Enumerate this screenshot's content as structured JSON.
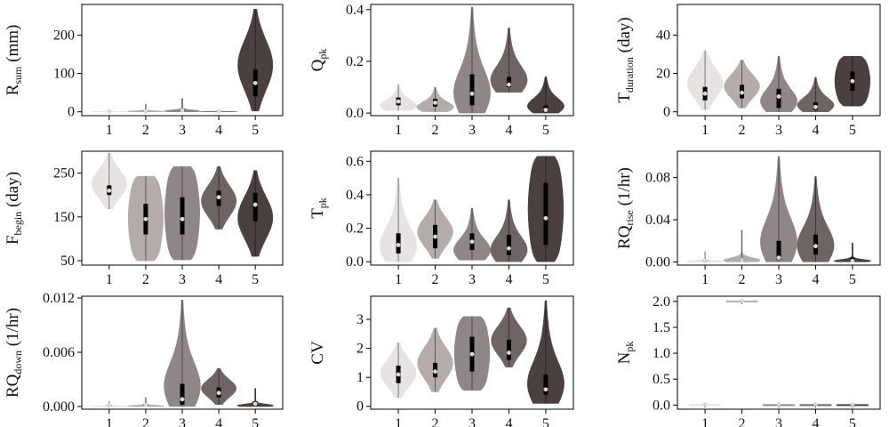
{
  "figure": {
    "colors": [
      "#e6e3e2",
      "#b3acab",
      "#8f8787",
      "#6d6463",
      "#4a403f"
    ],
    "median_dot_color": "#d9d9d9",
    "box_color": "#000000",
    "x_categories": [
      "1",
      "2",
      "3",
      "4",
      "5"
    ]
  },
  "chart_data": [
    {
      "id": "rsum",
      "type": "violin",
      "ylabel": {
        "main": "R",
        "sub": "sum",
        "unit": " (mm)"
      },
      "ylim": [
        -10,
        280
      ],
      "yticks": [
        0,
        100,
        200
      ],
      "ytick_labels": [
        "0",
        "100",
        "200"
      ],
      "categories": [
        "1",
        "2",
        "3",
        "4",
        "5"
      ],
      "series": [
        {
          "category": "1",
          "min": 0,
          "max": 4,
          "q1": 0.5,
          "q3": 2,
          "median": 1,
          "shape": "spike"
        },
        {
          "category": "2",
          "min": 0,
          "max": 20,
          "q1": 0.5,
          "q3": 2,
          "median": 1,
          "shape": "spike"
        },
        {
          "category": "3",
          "min": 0,
          "max": 35,
          "q1": 2,
          "q3": 8,
          "median": 4,
          "shape": "spike"
        },
        {
          "category": "4",
          "min": 0,
          "max": 6,
          "q1": 1,
          "q3": 3,
          "median": 2,
          "shape": "spike"
        },
        {
          "category": "5",
          "min": 2,
          "max": 268,
          "q1": 40,
          "q3": 110,
          "median": 75,
          "shape": "mid"
        }
      ]
    },
    {
      "id": "qpk",
      "type": "violin",
      "ylabel": {
        "main": "Q",
        "sub": "pk",
        "unit": ""
      },
      "ylim": [
        -0.01,
        0.42
      ],
      "yticks": [
        0,
        0.2,
        0.4
      ],
      "ytick_labels": [
        "0.0",
        "0.2",
        "0.4"
      ],
      "categories": [
        "1",
        "2",
        "3",
        "4",
        "5"
      ],
      "series": [
        {
          "category": "1",
          "min": 0.01,
          "max": 0.11,
          "q1": 0.03,
          "q3": 0.06,
          "median": 0.045,
          "shape": "low"
        },
        {
          "category": "2",
          "min": 0.005,
          "max": 0.1,
          "q1": 0.025,
          "q3": 0.055,
          "median": 0.04,
          "shape": "low"
        },
        {
          "category": "3",
          "min": 0.0,
          "max": 0.41,
          "q1": 0.03,
          "q3": 0.15,
          "median": 0.075,
          "shape": "low"
        },
        {
          "category": "4",
          "min": 0.08,
          "max": 0.33,
          "q1": 0.1,
          "q3": 0.14,
          "median": 0.11,
          "shape": "low"
        },
        {
          "category": "5",
          "min": 0.0,
          "max": 0.14,
          "q1": 0.005,
          "q3": 0.03,
          "median": 0.012,
          "shape": "low"
        }
      ]
    },
    {
      "id": "tduration",
      "type": "violin",
      "ylabel": {
        "main": "T",
        "sub": "duration",
        "unit": " (day)"
      },
      "ylim": [
        -2,
        56
      ],
      "yticks": [
        0,
        20,
        40
      ],
      "ytick_labels": [
        "0",
        "20",
        "40"
      ],
      "categories": [
        "1",
        "2",
        "3",
        "4",
        "5"
      ],
      "series": [
        {
          "category": "1",
          "min": 1,
          "max": 32,
          "q1": 6,
          "q3": 13,
          "median": 9.5,
          "shape": "mid"
        },
        {
          "category": "2",
          "min": 2,
          "max": 27,
          "q1": 7,
          "q3": 14,
          "median": 10,
          "shape": "mid"
        },
        {
          "category": "3",
          "min": 0,
          "max": 29,
          "q1": 2,
          "q3": 12,
          "median": 8,
          "shape": "low"
        },
        {
          "category": "4",
          "min": 0,
          "max": 18,
          "q1": 1,
          "q3": 5,
          "median": 2.5,
          "shape": "low"
        },
        {
          "category": "5",
          "min": 3,
          "max": 29,
          "q1": 11,
          "q3": 21,
          "median": 16,
          "shape": "wide"
        }
      ]
    },
    {
      "id": "fbegin",
      "type": "violin",
      "ylabel": {
        "main": "F",
        "sub": "begin",
        "unit": " (day)"
      },
      "ylim": [
        40,
        300
      ],
      "yticks": [
        50,
        150,
        250
      ],
      "ytick_labels": [
        "50",
        "150",
        "250"
      ],
      "categories": [
        "1",
        "2",
        "3",
        "4",
        "5"
      ],
      "series": [
        {
          "category": "1",
          "min": 168,
          "max": 296,
          "q1": 200,
          "q3": 222,
          "median": 210,
          "shape": "mid"
        },
        {
          "category": "2",
          "min": 50,
          "max": 243,
          "q1": 110,
          "q3": 180,
          "median": 145,
          "shape": "wide"
        },
        {
          "category": "3",
          "min": 52,
          "max": 265,
          "q1": 110,
          "q3": 195,
          "median": 145,
          "shape": "wide"
        },
        {
          "category": "4",
          "min": 122,
          "max": 265,
          "q1": 175,
          "q3": 210,
          "median": 195,
          "shape": "mid"
        },
        {
          "category": "5",
          "min": 60,
          "max": 256,
          "q1": 140,
          "q3": 205,
          "median": 178,
          "shape": "mid"
        }
      ]
    },
    {
      "id": "tpk",
      "type": "violin",
      "ylabel": {
        "main": "T",
        "sub": "pk",
        "unit": ""
      },
      "ylim": [
        -0.02,
        0.66
      ],
      "yticks": [
        0,
        0.2,
        0.4,
        0.6
      ],
      "ytick_labels": [
        "0.0",
        "0.2",
        "0.4",
        "0.6"
      ],
      "categories": [
        "1",
        "2",
        "3",
        "4",
        "5"
      ],
      "series": [
        {
          "category": "1",
          "min": 0,
          "max": 0.5,
          "q1": 0.05,
          "q3": 0.17,
          "median": 0.1,
          "shape": "low"
        },
        {
          "category": "2",
          "min": 0.02,
          "max": 0.37,
          "q1": 0.08,
          "q3": 0.22,
          "median": 0.15,
          "shape": "mid"
        },
        {
          "category": "3",
          "min": 0.01,
          "max": 0.32,
          "q1": 0.07,
          "q3": 0.17,
          "median": 0.12,
          "shape": "low"
        },
        {
          "category": "4",
          "min": 0.0,
          "max": 0.37,
          "q1": 0.04,
          "q3": 0.16,
          "median": 0.08,
          "shape": "low"
        },
        {
          "category": "5",
          "min": 0.0,
          "max": 0.63,
          "q1": 0.1,
          "q3": 0.47,
          "median": 0.26,
          "shape": "wide"
        }
      ]
    },
    {
      "id": "rqrise",
      "type": "violin",
      "ylabel": {
        "main": "RQ",
        "sub": "rise",
        "unit": " (1/hr)"
      },
      "ylim": [
        -0.003,
        0.105
      ],
      "yticks": [
        0,
        0.04,
        0.08
      ],
      "ytick_labels": [
        "0.00",
        "0.04",
        "0.08"
      ],
      "categories": [
        "1",
        "2",
        "3",
        "4",
        "5"
      ],
      "series": [
        {
          "category": "1",
          "min": 0,
          "max": 0.01,
          "q1": 0.0003,
          "q3": 0.002,
          "median": 0.001,
          "shape": "spike"
        },
        {
          "category": "2",
          "min": 0,
          "max": 0.03,
          "q1": 0.0005,
          "q3": 0.003,
          "median": 0.0015,
          "shape": "spike"
        },
        {
          "category": "3",
          "min": 0,
          "max": 0.1,
          "q1": 0.002,
          "q3": 0.02,
          "median": 0.004,
          "shape": "low"
        },
        {
          "category": "4",
          "min": 0,
          "max": 0.081,
          "q1": 0.007,
          "q3": 0.026,
          "median": 0.015,
          "shape": "low"
        },
        {
          "category": "5",
          "min": 0,
          "max": 0.018,
          "q1": 0.0005,
          "q3": 0.004,
          "median": 0.001,
          "shape": "spike"
        }
      ]
    },
    {
      "id": "rqdown",
      "type": "violin",
      "ylabel": {
        "main": "RQ",
        "sub": "down",
        "unit": " (1/hr)"
      },
      "ylim": [
        -0.0003,
        0.0122
      ],
      "yticks": [
        0,
        0.006,
        0.012
      ],
      "ytick_labels": [
        "0.000",
        "0.006",
        "0.012"
      ],
      "categories": [
        "1",
        "2",
        "3",
        "4",
        "5"
      ],
      "series": [
        {
          "category": "1",
          "min": 0,
          "max": 0.0006,
          "q1": 5e-05,
          "q3": 0.0002,
          "median": 0.0001,
          "shape": "spike"
        },
        {
          "category": "2",
          "min": 0,
          "max": 0.001,
          "q1": 5e-05,
          "q3": 0.0003,
          "median": 0.00015,
          "shape": "spike"
        },
        {
          "category": "3",
          "min": 0,
          "max": 0.0118,
          "q1": 0.0002,
          "q3": 0.0025,
          "median": 0.0008,
          "shape": "low"
        },
        {
          "category": "4",
          "min": 0.0002,
          "max": 0.0042,
          "q1": 0.001,
          "q3": 0.0021,
          "median": 0.0015,
          "shape": "mid"
        },
        {
          "category": "5",
          "min": 0,
          "max": 0.002,
          "q1": 0.0001,
          "q3": 0.0006,
          "median": 0.0003,
          "shape": "spike"
        }
      ]
    },
    {
      "id": "cv",
      "type": "violin",
      "ylabel": {
        "main": "CV",
        "sub": "",
        "unit": ""
      },
      "ylim": [
        -0.1,
        3.8
      ],
      "yticks": [
        0,
        1,
        2,
        3
      ],
      "ytick_labels": [
        "0",
        "1",
        "2",
        "3"
      ],
      "categories": [
        "1",
        "2",
        "3",
        "4",
        "5"
      ],
      "series": [
        {
          "category": "1",
          "min": 0.3,
          "max": 2.2,
          "q1": 0.8,
          "q3": 1.4,
          "median": 1.1,
          "shape": "mid"
        },
        {
          "category": "2",
          "min": 0.5,
          "max": 2.7,
          "q1": 1.0,
          "q3": 1.5,
          "median": 1.2,
          "shape": "mid"
        },
        {
          "category": "3",
          "min": 0.55,
          "max": 3.1,
          "q1": 1.2,
          "q3": 2.4,
          "median": 1.8,
          "shape": "wide"
        },
        {
          "category": "4",
          "min": 1.35,
          "max": 3.4,
          "q1": 1.6,
          "q3": 2.3,
          "median": 1.85,
          "shape": "mid"
        },
        {
          "category": "5",
          "min": 0.1,
          "max": 3.65,
          "q1": 0.4,
          "q3": 1.1,
          "median": 0.58,
          "shape": "low"
        }
      ]
    },
    {
      "id": "npk",
      "type": "violin",
      "ylabel": {
        "main": "N",
        "sub": "pk",
        "unit": ""
      },
      "ylim": [
        -0.08,
        2.1
      ],
      "yticks": [
        0,
        0.5,
        1.0,
        1.5,
        2.0
      ],
      "ytick_labels": [
        "0.0",
        "0.5",
        "1.0",
        "1.5",
        "2.0"
      ],
      "categories": [
        "1",
        "2",
        "3",
        "4",
        "5"
      ],
      "series": [
        {
          "category": "1",
          "value": 0,
          "shape": "flat"
        },
        {
          "category": "2",
          "value": 2,
          "shape": "flat"
        },
        {
          "category": "3",
          "value": 0,
          "shape": "flat"
        },
        {
          "category": "4",
          "value": 0,
          "shape": "flat"
        },
        {
          "category": "5",
          "value": 0,
          "shape": "flat"
        }
      ]
    }
  ]
}
